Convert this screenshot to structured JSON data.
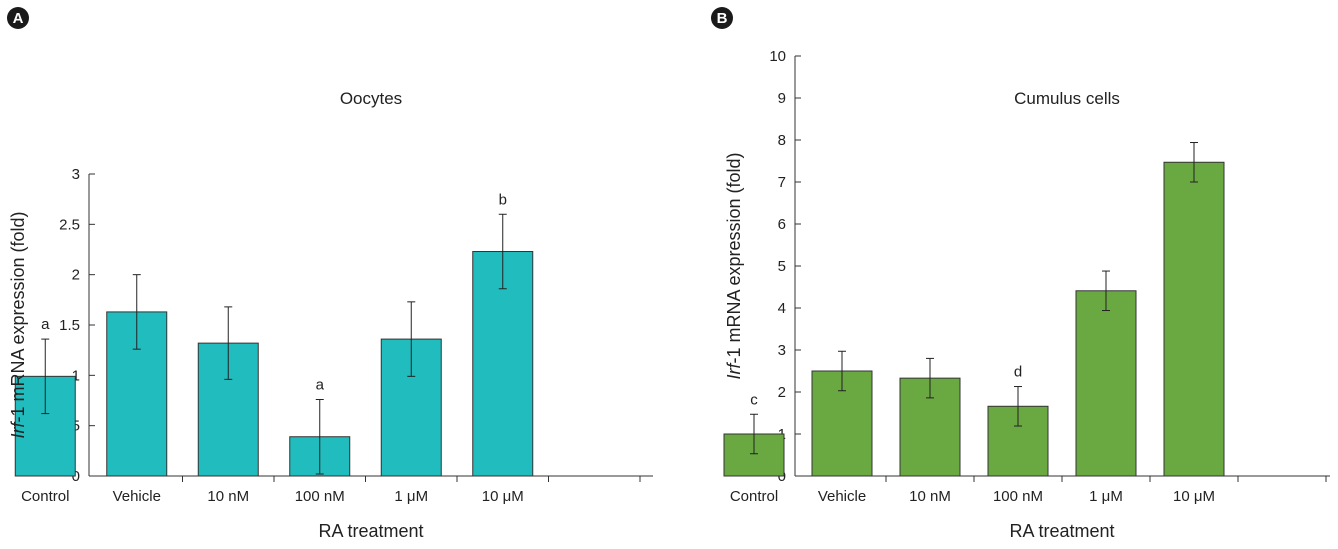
{
  "chart_data": [
    {
      "type": "bar",
      "panel": "A",
      "title": "Oocytes",
      "xlabel": "RA treatment",
      "ylabel_italic": "Irf",
      "ylabel_rest": "-1 mRNA expression (fold)",
      "categories": [
        "Control",
        "Vehicle",
        "10 nM",
        "100 nM",
        "1 μM",
        "10 μM"
      ],
      "values": [
        0.99,
        1.63,
        1.32,
        0.39,
        1.36,
        2.23
      ],
      "errors": [
        0.37,
        0.37,
        0.36,
        0.37,
        0.37,
        0.37
      ],
      "significance": [
        "a",
        "",
        "",
        "a",
        "",
        "b"
      ],
      "ylim": [
        0,
        3
      ],
      "yticks": [
        "0",
        "0.5",
        "1",
        "1.5",
        "2",
        "2.5",
        "3"
      ],
      "bar_color": "#21bcbe"
    },
    {
      "type": "bar",
      "panel": "B",
      "title": "Cumulus cells",
      "xlabel": "RA treatment",
      "ylabel_italic": "Irf",
      "ylabel_rest": "-1 mRNA expression (fold)",
      "categories": [
        "Control",
        "Vehicle",
        "10 nM",
        "100 nM",
        "1 μM",
        "10 μM"
      ],
      "values": [
        1.0,
        2.5,
        2.33,
        1.66,
        4.41,
        7.47
      ],
      "errors": [
        0.47,
        0.47,
        0.47,
        0.47,
        0.47,
        0.47
      ],
      "significance": [
        "c",
        "",
        "",
        "d",
        "",
        ""
      ],
      "ylim": [
        0,
        10
      ],
      "yticks": [
        "0",
        "1",
        "2",
        "3",
        "4",
        "5",
        "6",
        "7",
        "8",
        "9",
        "10"
      ],
      "bar_color": "#6aa842"
    }
  ]
}
